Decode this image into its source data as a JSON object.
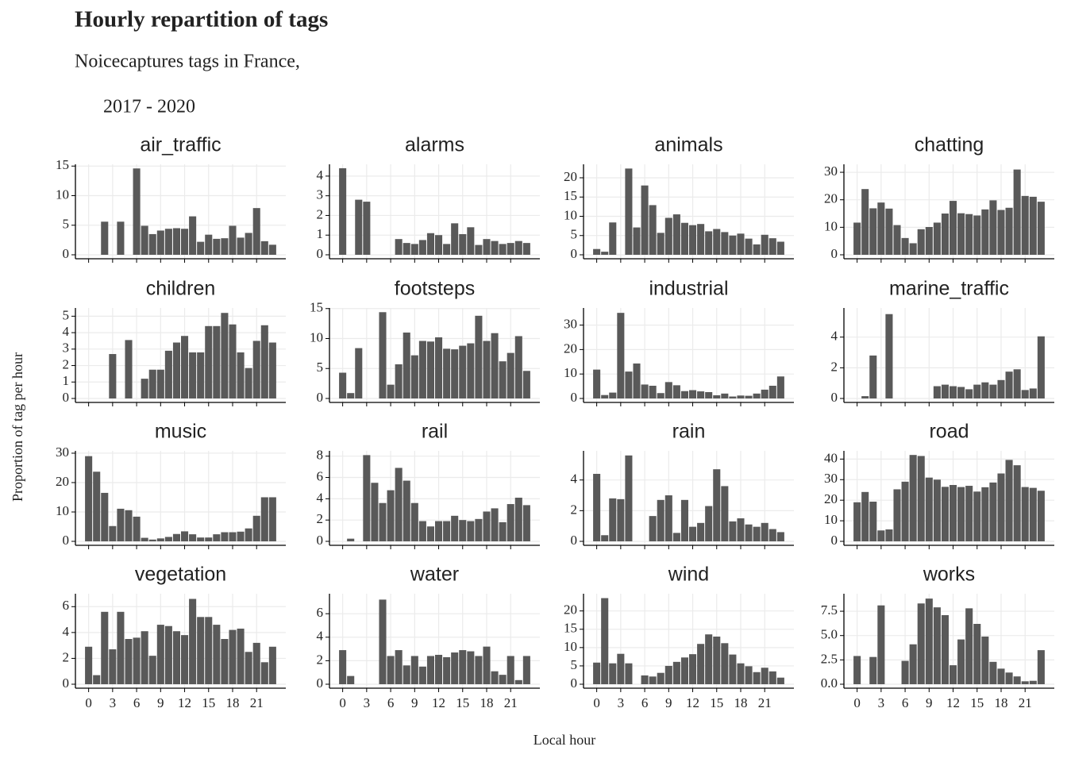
{
  "title": "Hourly repartition of tags",
  "subtitle": [
    "Noicecaptures tags in France,",
    "2017 - 2020"
  ],
  "x_label": "Local hour",
  "y_label": "Proportion of tag per hour",
  "chart_data": [
    {
      "type": "bar",
      "title": "air_traffic",
      "color": "#595959",
      "grid": true,
      "x": [
        0,
        1,
        2,
        3,
        4,
        5,
        6,
        7,
        8,
        9,
        10,
        11,
        12,
        13,
        14,
        15,
        16,
        17,
        18,
        19,
        20,
        21,
        22,
        23
      ],
      "values": [
        0,
        0,
        5.6,
        0,
        5.6,
        0,
        14.6,
        4.9,
        3.5,
        4.1,
        4.4,
        4.5,
        4.4,
        6.5,
        2.2,
        3.4,
        2.7,
        2.8,
        4.9,
        2.9,
        3.7,
        7.9,
        2.3,
        1.7
      ],
      "xlim": [
        -1.65,
        24.65
      ],
      "xticks": [
        0,
        3,
        6,
        9,
        12,
        15,
        18,
        21
      ],
      "ylim": [
        0,
        15.3
      ],
      "yticks": [
        0,
        5,
        10,
        15
      ]
    },
    {
      "type": "bar",
      "title": "alarms",
      "color": "#595959",
      "grid": true,
      "x": [
        0,
        1,
        2,
        3,
        4,
        5,
        6,
        7,
        8,
        9,
        10,
        11,
        12,
        13,
        14,
        15,
        16,
        17,
        18,
        19,
        20,
        21,
        22,
        23
      ],
      "values": [
        4.4,
        0,
        2.8,
        2.7,
        0,
        0,
        0,
        0.8,
        0.6,
        0.55,
        0.75,
        1.1,
        1.0,
        0.55,
        1.6,
        1.05,
        1.4,
        0.5,
        0.8,
        0.7,
        0.55,
        0.6,
        0.7,
        0.6
      ],
      "xlim": [
        -1.65,
        24.65
      ],
      "xticks": [
        0,
        3,
        6,
        9,
        12,
        15,
        18,
        21
      ],
      "ylim": [
        0,
        4.6
      ],
      "yticks": [
        0,
        1,
        2,
        3,
        4
      ]
    },
    {
      "type": "bar",
      "title": "animals",
      "color": "#595959",
      "grid": true,
      "x": [
        0,
        1,
        2,
        3,
        4,
        5,
        6,
        7,
        8,
        9,
        10,
        11,
        12,
        13,
        14,
        15,
        16,
        17,
        18,
        19,
        20,
        21,
        22,
        23
      ],
      "values": [
        1.5,
        0.8,
        8.4,
        0,
        22.4,
        7.1,
        18,
        12.9,
        5.7,
        9.6,
        10.5,
        8.3,
        7.7,
        8.0,
        6.1,
        6.7,
        5.9,
        5.0,
        5.5,
        4.2,
        2.7,
        5.2,
        4.3,
        3.4
      ],
      "xlim": [
        -1.65,
        24.65
      ],
      "xticks": [
        0,
        3,
        6,
        9,
        12,
        15,
        18,
        21
      ],
      "ylim": [
        0,
        23.5
      ],
      "yticks": [
        0,
        5,
        10,
        15,
        20
      ]
    },
    {
      "type": "bar",
      "title": "chatting",
      "color": "#595959",
      "grid": true,
      "x": [
        0,
        1,
        2,
        3,
        4,
        5,
        6,
        7,
        8,
        9,
        10,
        11,
        12,
        13,
        14,
        15,
        16,
        17,
        18,
        19,
        20,
        21,
        22,
        23
      ],
      "values": [
        11.7,
        23.9,
        16.9,
        19,
        16.8,
        10.8,
        6.1,
        4.2,
        9.3,
        10.1,
        11.7,
        15,
        19.6,
        15.1,
        14.8,
        14.3,
        16.5,
        19.8,
        16.3,
        17.1,
        31,
        21.4,
        21.1,
        19.3
      ],
      "xlim": [
        -1.65,
        24.65
      ],
      "xticks": [
        0,
        3,
        6,
        9,
        12,
        15,
        18,
        21
      ],
      "ylim": [
        0,
        32.9
      ],
      "yticks": [
        0,
        10,
        20,
        30
      ]
    },
    {
      "type": "bar",
      "title": "children",
      "color": "#595959",
      "grid": true,
      "x": [
        0,
        1,
        2,
        3,
        4,
        5,
        6,
        7,
        8,
        9,
        10,
        11,
        12,
        13,
        14,
        15,
        16,
        17,
        18,
        19,
        20,
        21,
        22,
        23
      ],
      "values": [
        0,
        0,
        0,
        2.7,
        0,
        3.55,
        0,
        1.2,
        1.75,
        1.75,
        2.9,
        3.4,
        3.8,
        2.8,
        2.8,
        4.4,
        4.4,
        5.2,
        4.5,
        2.8,
        1.85,
        3.5,
        4.45,
        3.4
      ],
      "xlim": [
        -1.65,
        24.65
      ],
      "xticks": [
        0,
        3,
        6,
        9,
        12,
        15,
        18,
        21
      ],
      "ylim": [
        0,
        5.5
      ],
      "yticks": [
        0,
        1,
        2,
        3,
        4,
        5
      ]
    },
    {
      "type": "bar",
      "title": "footsteps",
      "color": "#595959",
      "grid": true,
      "x": [
        0,
        1,
        2,
        3,
        4,
        5,
        6,
        7,
        8,
        9,
        10,
        11,
        12,
        13,
        14,
        15,
        16,
        17,
        18,
        19,
        20,
        21,
        22,
        23
      ],
      "values": [
        4.3,
        0.9,
        8.4,
        0,
        0,
        14.4,
        2.3,
        5.7,
        11,
        7.2,
        9.6,
        9.5,
        10.2,
        8.3,
        8.2,
        8.8,
        9.2,
        13.8,
        9.6,
        10.9,
        6.2,
        7.6,
        10.4,
        4.6
      ],
      "xlim": [
        -1.65,
        24.65
      ],
      "xticks": [
        0,
        3,
        6,
        9,
        12,
        15,
        18,
        21
      ],
      "ylim": [
        0,
        15.1
      ],
      "yticks": [
        0,
        5,
        10,
        15
      ]
    },
    {
      "type": "bar",
      "title": "industrial",
      "color": "#595959",
      "grid": true,
      "x": [
        0,
        1,
        2,
        3,
        4,
        5,
        6,
        7,
        8,
        9,
        10,
        11,
        12,
        13,
        14,
        15,
        16,
        17,
        18,
        19,
        20,
        21,
        22,
        23
      ],
      "values": [
        11.8,
        1.4,
        2.4,
        35,
        11,
        14.3,
        5.7,
        5.2,
        2.2,
        6.7,
        5.4,
        3,
        3.4,
        2.9,
        2.6,
        1.3,
        2,
        0.8,
        1.2,
        1.1,
        2,
        3.6,
        5.2,
        9
      ],
      "xlim": [
        -1.65,
        24.65
      ],
      "xticks": [
        0,
        3,
        6,
        9,
        12,
        15,
        18,
        21
      ],
      "ylim": [
        0,
        37
      ],
      "yticks": [
        0,
        10,
        20,
        30
      ]
    },
    {
      "type": "bar",
      "title": "marine_traffic",
      "color": "#595959",
      "grid": true,
      "x": [
        0,
        1,
        2,
        3,
        4,
        5,
        6,
        7,
        8,
        9,
        10,
        11,
        12,
        13,
        14,
        15,
        16,
        17,
        18,
        19,
        20,
        21,
        22,
        23
      ],
      "values": [
        0,
        0.15,
        2.8,
        0,
        5.5,
        0,
        0,
        0,
        0,
        0,
        0.8,
        0.9,
        0.8,
        0.75,
        0.6,
        0.9,
        1.05,
        0.9,
        1.2,
        1.75,
        1.9,
        0.55,
        0.65,
        4.05
      ],
      "xlim": [
        -1.65,
        24.65
      ],
      "xticks": [
        0,
        3,
        6,
        9,
        12,
        15,
        18,
        21
      ],
      "ylim": [
        0,
        5.9
      ],
      "yticks": [
        0,
        2,
        4
      ]
    },
    {
      "type": "bar",
      "title": "music",
      "color": "#595959",
      "grid": true,
      "x": [
        0,
        1,
        2,
        3,
        4,
        5,
        6,
        7,
        8,
        9,
        10,
        11,
        12,
        13,
        14,
        15,
        16,
        17,
        18,
        19,
        20,
        21,
        22,
        23
      ],
      "values": [
        29,
        23.7,
        16.5,
        5.2,
        11.1,
        10.6,
        8.4,
        1.2,
        0.6,
        1,
        1.5,
        2.5,
        3.4,
        2.4,
        1.3,
        1.3,
        2.4,
        3.1,
        3.1,
        3.3,
        4.4,
        8.7,
        15,
        15
      ],
      "xlim": [
        -1.65,
        24.65
      ],
      "xticks": [
        0,
        3,
        6,
        9,
        12,
        15,
        18,
        21
      ],
      "ylim": [
        0,
        30.8
      ],
      "yticks": [
        0,
        10,
        20,
        30
      ]
    },
    {
      "type": "bar",
      "title": "rail",
      "color": "#595959",
      "grid": true,
      "x": [
        0,
        1,
        2,
        3,
        4,
        5,
        6,
        7,
        8,
        9,
        10,
        11,
        12,
        13,
        14,
        15,
        16,
        17,
        18,
        19,
        20,
        21,
        22,
        23
      ],
      "values": [
        0,
        0.25,
        0,
        8.1,
        5.5,
        3.6,
        4.8,
        6.9,
        5.7,
        3.6,
        1.9,
        1.4,
        1.9,
        1.9,
        2.4,
        2,
        1.9,
        2.1,
        2.8,
        3.1,
        1.8,
        3.5,
        4.1,
        3.4
      ],
      "xlim": [
        -1.65,
        24.65
      ],
      "xticks": [
        0,
        3,
        6,
        9,
        12,
        15,
        18,
        21
      ],
      "ylim": [
        0,
        8.5
      ],
      "yticks": [
        0,
        2,
        4,
        6,
        8
      ]
    },
    {
      "type": "bar",
      "title": "rain",
      "color": "#595959",
      "grid": true,
      "x": [
        0,
        1,
        2,
        3,
        4,
        5,
        6,
        7,
        8,
        9,
        10,
        11,
        12,
        13,
        14,
        15,
        16,
        17,
        18,
        19,
        20,
        21,
        22,
        23
      ],
      "values": [
        4.4,
        0.4,
        2.8,
        2.75,
        5.6,
        0,
        0,
        1.65,
        2.7,
        3,
        0.55,
        2.7,
        0.95,
        1.2,
        2.3,
        4.7,
        3.6,
        1.3,
        1.5,
        1.1,
        0.95,
        1.2,
        0.8,
        0.6
      ],
      "xlim": [
        -1.65,
        24.65
      ],
      "xticks": [
        0,
        3,
        6,
        9,
        12,
        15,
        18,
        21
      ],
      "ylim": [
        0,
        5.9
      ],
      "yticks": [
        0,
        2,
        4
      ]
    },
    {
      "type": "bar",
      "title": "road",
      "color": "#595959",
      "grid": true,
      "x": [
        0,
        1,
        2,
        3,
        4,
        5,
        6,
        7,
        8,
        9,
        10,
        11,
        12,
        13,
        14,
        15,
        16,
        17,
        18,
        19,
        20,
        21,
        22,
        23
      ],
      "values": [
        19,
        24,
        19.3,
        5.3,
        5.8,
        25.3,
        29,
        42,
        41.5,
        31,
        30,
        26.5,
        27.4,
        26.4,
        27,
        24.2,
        26.3,
        28.6,
        33,
        39.6,
        37,
        26.4,
        26,
        24.6
      ],
      "xlim": [
        -1.65,
        24.65
      ],
      "xticks": [
        0,
        3,
        6,
        9,
        12,
        15,
        18,
        21
      ],
      "ylim": [
        0,
        44
      ],
      "yticks": [
        0,
        10,
        20,
        30,
        40
      ]
    },
    {
      "type": "bar",
      "title": "vegetation",
      "color": "#595959",
      "grid": true,
      "x": [
        0,
        1,
        2,
        3,
        4,
        5,
        6,
        7,
        8,
        9,
        10,
        11,
        12,
        13,
        14,
        15,
        16,
        17,
        18,
        19,
        20,
        21,
        22,
        23
      ],
      "values": [
        2.9,
        0.7,
        5.6,
        2.7,
        5.6,
        3.5,
        3.6,
        4.1,
        2.2,
        4.6,
        4.5,
        4.1,
        3.8,
        6.6,
        5.2,
        5.2,
        4.6,
        3.5,
        4.2,
        4.3,
        2.5,
        3.2,
        1.7,
        2.9
      ],
      "xlim": [
        -1.65,
        24.65
      ],
      "xticks": [
        0,
        3,
        6,
        9,
        12,
        15,
        18,
        21
      ],
      "ylim": [
        0,
        7
      ],
      "yticks": [
        0,
        2,
        4,
        6
      ]
    },
    {
      "type": "bar",
      "title": "water",
      "color": "#595959",
      "grid": true,
      "x": [
        0,
        1,
        2,
        3,
        4,
        5,
        6,
        7,
        8,
        9,
        10,
        11,
        12,
        13,
        14,
        15,
        16,
        17,
        18,
        19,
        20,
        21,
        22,
        23
      ],
      "values": [
        2.9,
        0.7,
        0,
        0,
        0,
        7.2,
        2.4,
        2.9,
        1.6,
        2.4,
        1.5,
        2.4,
        2.5,
        2.3,
        2.7,
        2.9,
        2.8,
        2.4,
        3.2,
        1.1,
        0.8,
        2.4,
        0.35,
        2.4
      ],
      "xlim": [
        -1.65,
        24.65
      ],
      "xticks": [
        0,
        3,
        6,
        9,
        12,
        15,
        18,
        21
      ],
      "ylim": [
        0,
        7.7
      ],
      "yticks": [
        0,
        2,
        4,
        6
      ]
    },
    {
      "type": "bar",
      "title": "wind",
      "color": "#595959",
      "grid": true,
      "x": [
        0,
        1,
        2,
        3,
        4,
        5,
        6,
        7,
        8,
        9,
        10,
        11,
        12,
        13,
        14,
        15,
        16,
        17,
        18,
        19,
        20,
        21,
        22,
        23
      ],
      "values": [
        5.9,
        23.5,
        5.7,
        8.3,
        5.7,
        0,
        2.4,
        2.1,
        3.1,
        5,
        6.1,
        7.3,
        8.2,
        11,
        13.6,
        13,
        11.2,
        8.1,
        5.7,
        4.9,
        3.3,
        4.5,
        3.5,
        1.8
      ],
      "xlim": [
        -1.65,
        24.65
      ],
      "xticks": [
        0,
        3,
        6,
        9,
        12,
        15,
        18,
        21
      ],
      "ylim": [
        0,
        24.7
      ],
      "yticks": [
        0,
        5,
        10,
        15,
        20
      ]
    },
    {
      "type": "bar",
      "title": "works",
      "color": "#595959",
      "grid": true,
      "x": [
        0,
        1,
        2,
        3,
        4,
        5,
        6,
        7,
        8,
        9,
        10,
        11,
        12,
        13,
        14,
        15,
        16,
        17,
        18,
        19,
        20,
        21,
        22,
        23
      ],
      "values": [
        2.9,
        0,
        2.8,
        8.1,
        0,
        0,
        2.4,
        4.1,
        8.3,
        8.8,
        7.9,
        7.1,
        1.95,
        4.6,
        7.8,
        6.2,
        4.9,
        2.3,
        1.6,
        1.2,
        0.8,
        0.3,
        0.35,
        3.5
      ],
      "xlim": [
        -1.65,
        24.65
      ],
      "xticks": [
        0,
        3,
        6,
        9,
        12,
        15,
        18,
        21
      ],
      "ylim": [
        0,
        9.3
      ],
      "yticks": [
        {
          "value": 0,
          "label": "0.0"
        },
        {
          "value": 2.5,
          "label": "2.5"
        },
        {
          "value": 5,
          "label": "5.0"
        },
        7.5
      ]
    }
  ]
}
